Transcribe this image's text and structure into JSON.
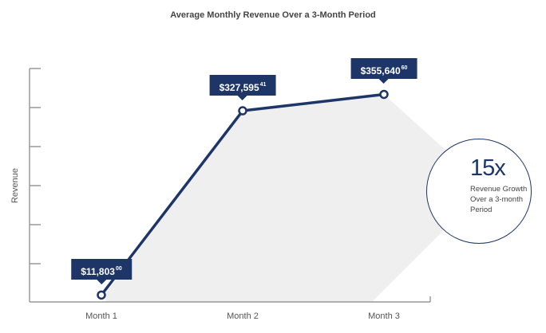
{
  "chart_data": {
    "type": "area",
    "title": "Average Monthly Revenue Over a 3-Month Period",
    "xlabel": "",
    "ylabel": "Revenue",
    "categories": [
      "Month 1",
      "Month 2",
      "Month 3"
    ],
    "values": [
      11803.0,
      327595.41,
      355640.6
    ],
    "data_labels": [
      {
        "main": "$11,803",
        "cents": "00"
      },
      {
        "main": "$327,595",
        "cents": "41"
      },
      {
        "main": "$355,640",
        "cents": "60"
      }
    ],
    "ylim": [
      0,
      400000
    ],
    "y_tick_labels_shown": false,
    "grid": false,
    "line_color": "#1d3567",
    "fill_color": "#efefef",
    "annotation": {
      "value": "15x",
      "text": "Revenue Growth Over a 3-month Period"
    }
  }
}
